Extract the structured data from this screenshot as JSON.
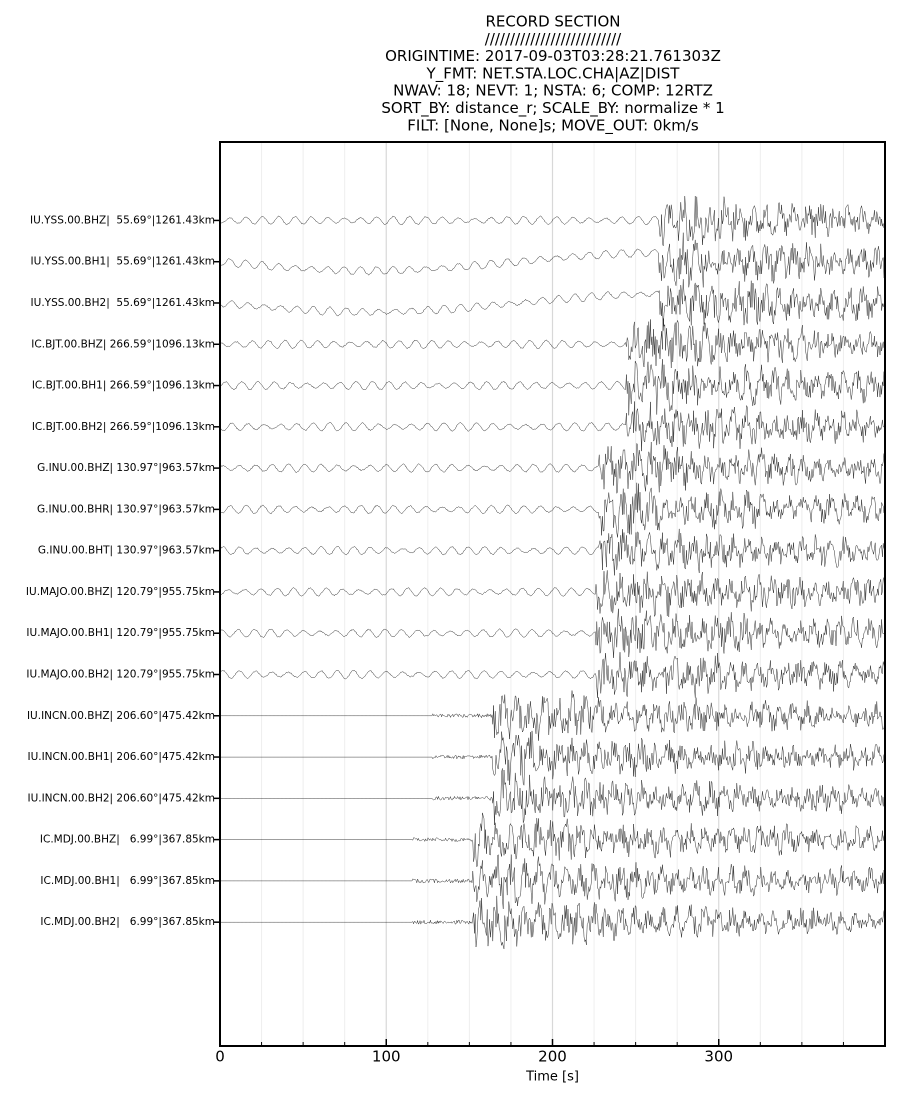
{
  "chart_data": {
    "type": "record_section",
    "title_lines": [
      "RECORD SECTION",
      "///////////////////////////",
      "ORIGINTIME: 2017-09-03T03:28:21.761303Z",
      "Y_FMT: NET.STA.LOC.CHA|AZ|DIST",
      "NWAV: 18; NEVT: 1; NSTA: 6; COMP: 12RTZ",
      "SORT_BY: distance_r; SCALE_BY: normalize * 1",
      "FILT: [None, None]s; MOVE_OUT: 0km/s"
    ],
    "xlabel": "Time [s]",
    "xlim": [
      0,
      400
    ],
    "xticks": [
      0,
      100,
      200,
      300
    ],
    "xminor_step": 25,
    "grid": true,
    "trace_color": "#000000",
    "categories": [
      "IU.YSS.00.BHZ|  55.69°|1261.43km",
      "IU.YSS.00.BH1|  55.69°|1261.43km",
      "IU.YSS.00.BH2|  55.69°|1261.43km",
      "IC.BJT.00.BHZ| 266.59°|1096.13km",
      "IC.BJT.00.BH1| 266.59°|1096.13km",
      "IC.BJT.00.BH2| 266.59°|1096.13km",
      "G.INU.00.BHZ| 130.97°|963.57km",
      "G.INU.00.BHR| 130.97°|963.57km",
      "G.INU.00.BHT| 130.97°|963.57km",
      "IU.MAJO.00.BHZ| 120.79°|955.75km",
      "IU.MAJO.00.BH1| 120.79°|955.75km",
      "IU.MAJO.00.BH2| 120.79°|955.75km",
      "IU.INCN.00.BHZ| 206.60°|475.42km",
      "IU.INCN.00.BH1| 206.60°|475.42km",
      "IU.INCN.00.BH2| 206.60°|475.42km",
      "IC.MDJ.00.BHZ|   6.99°|367.85km",
      "IC.MDJ.00.BH1|   6.99°|367.85km",
      "IC.MDJ.00.BH2|   6.99°|367.85km"
    ]
  }
}
